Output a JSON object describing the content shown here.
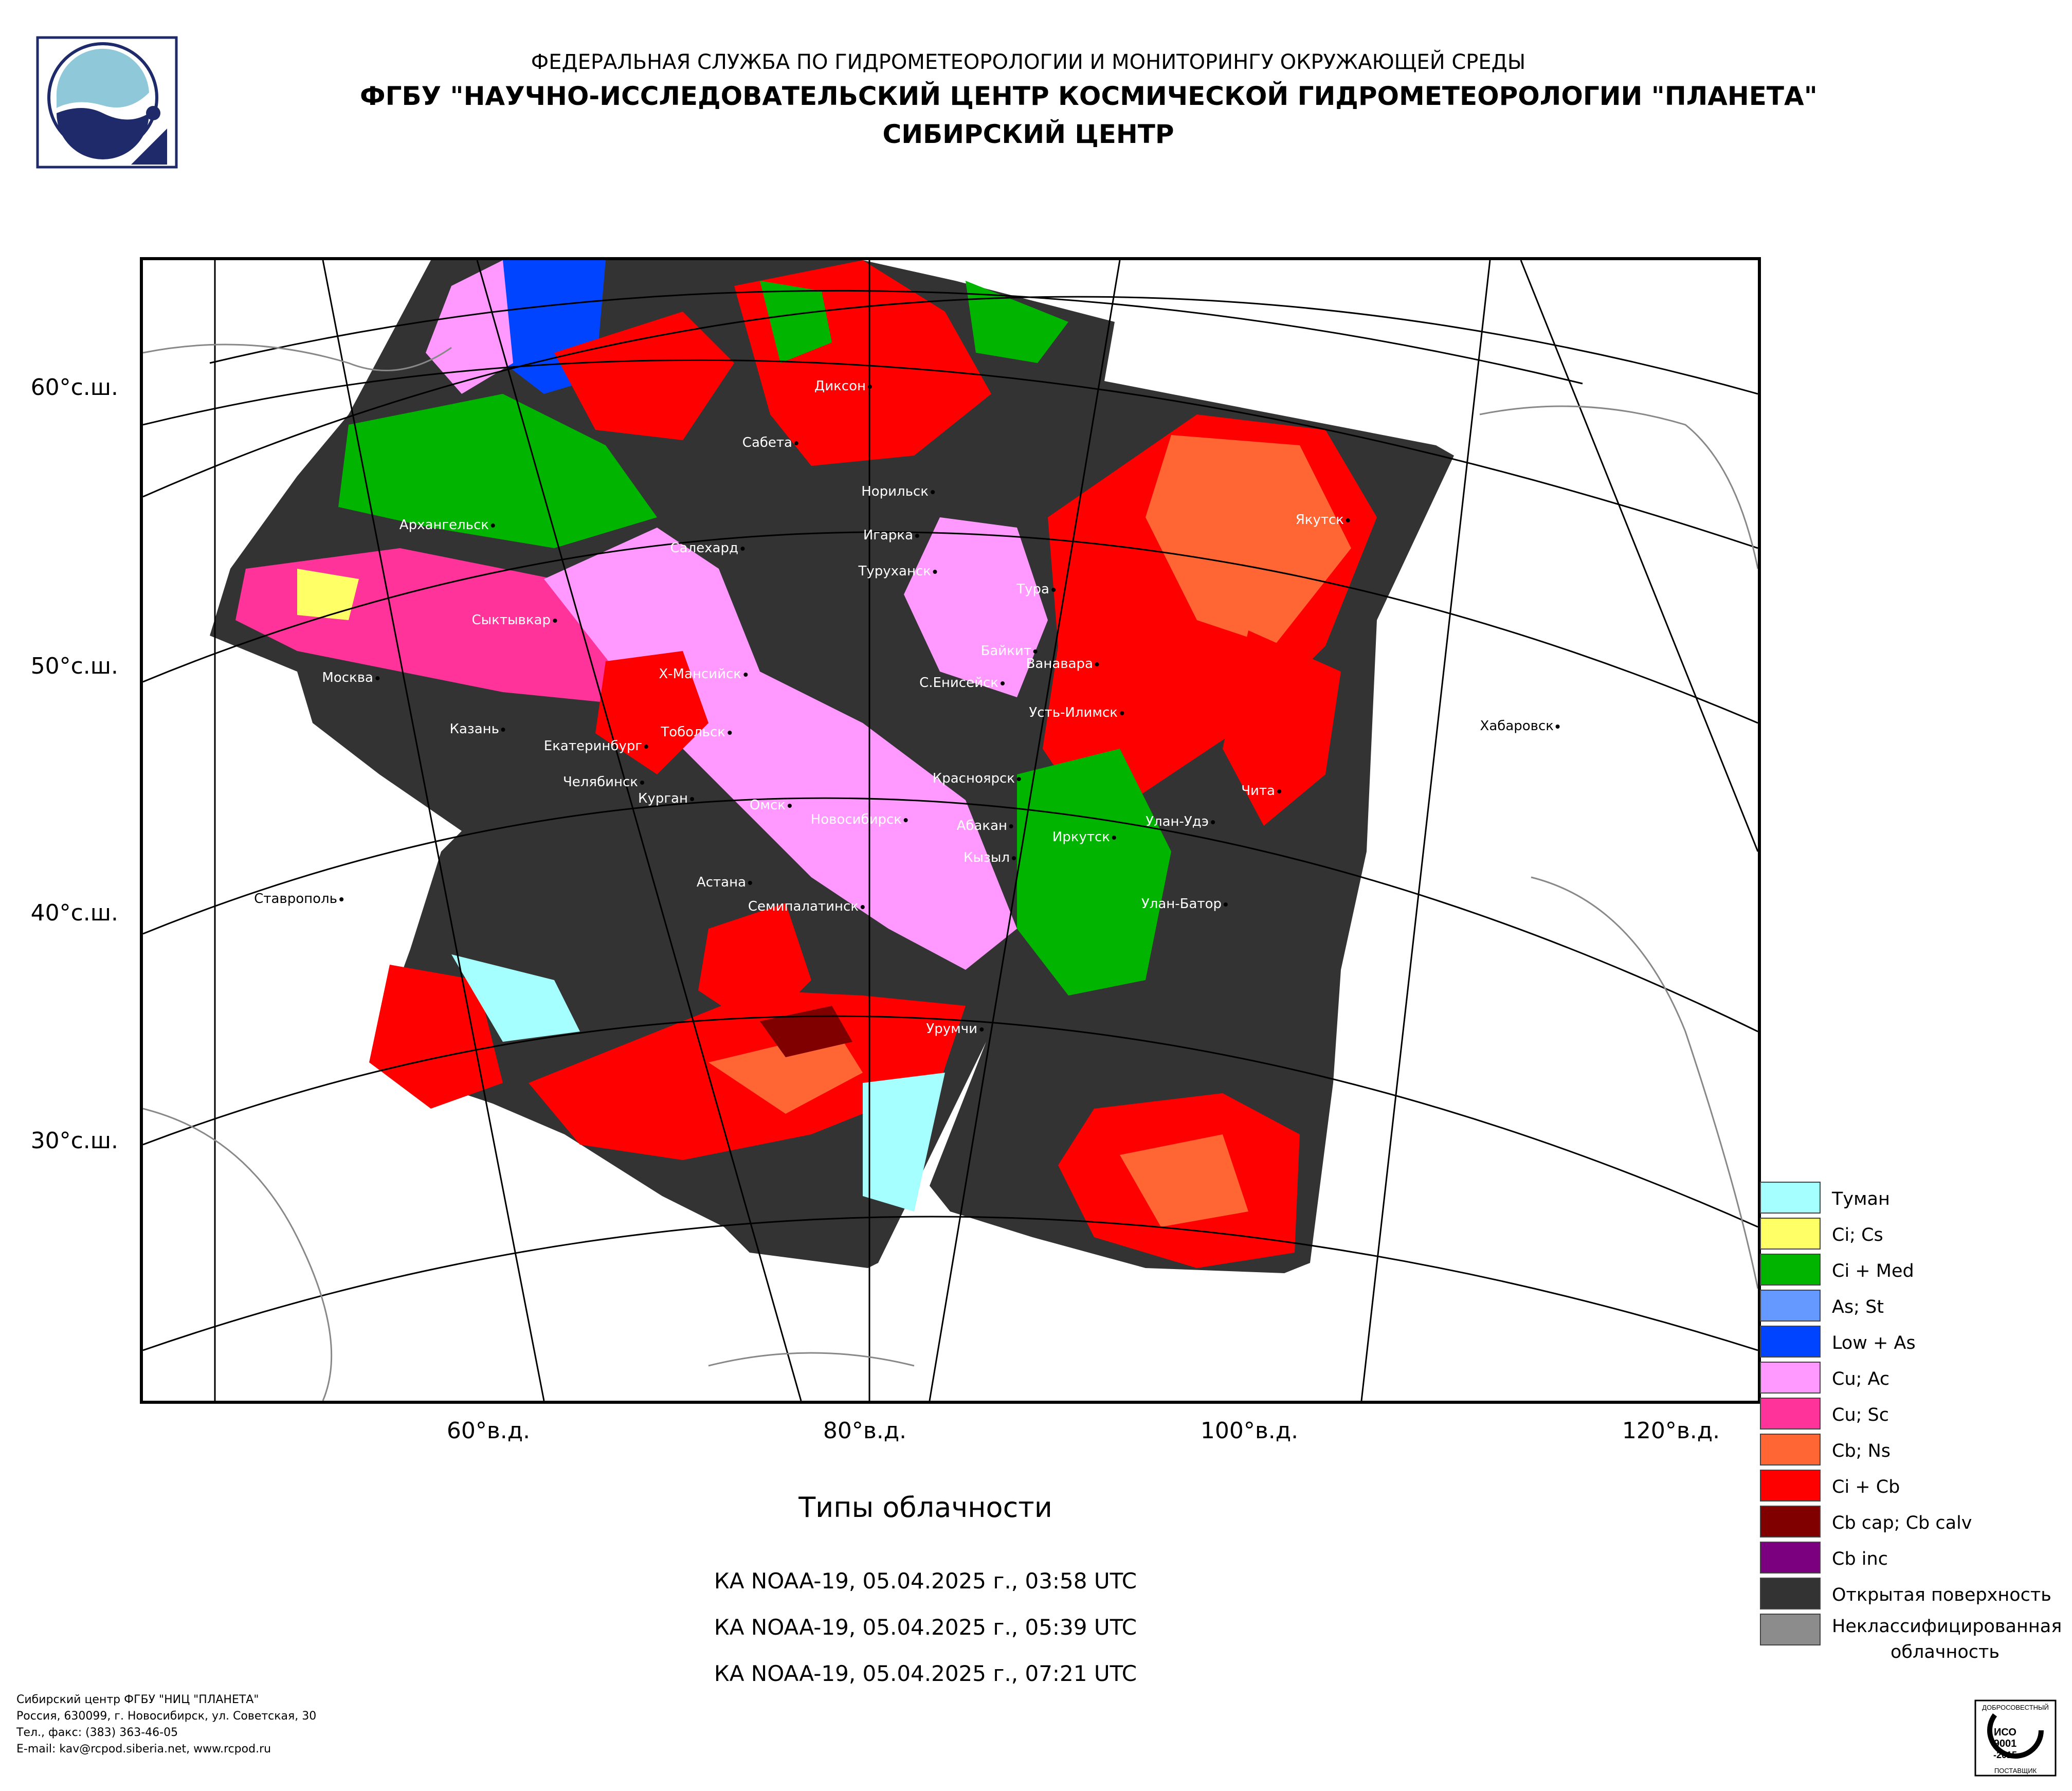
{
  "header": {
    "line1": "ФЕДЕРАЛЬНАЯ СЛУЖБА ПО ГИДРОМЕТЕОРОЛОГИИ И МОНИТОРИНГУ ОКРУЖАЮЩЕЙ СРЕДЫ",
    "line2": "ФГБУ \"НАУЧНО-ИССЛЕДОВАТЕЛЬСКИЙ ЦЕНТР КОСМИЧЕСКОЙ ГИДРОМЕТЕОРОЛОГИИ \"ПЛАНЕТА\"",
    "line3": "СИБИРСКИЙ ЦЕНТР"
  },
  "logo": {
    "icon": "planeta-logo-icon"
  },
  "map": {
    "latitude_labels": [
      "60°с.ш.",
      "50°с.ш.",
      "40°с.ш.",
      "30°с.ш."
    ],
    "longitude_labels": [
      "60°в.д.",
      "80°в.д.",
      "100°в.д.",
      "120°в.д."
    ],
    "cities": [
      "Диксон",
      "Сабета",
      "Норильск",
      "Архангельск",
      "Салехард",
      "Игарка",
      "Туруханск",
      "Якутск",
      "Тура",
      "Сыктывкар",
      "Байкит",
      "Ванавара",
      "Москва",
      "Х-Мансийск",
      "С.Енисейск",
      "Усть-Илимск",
      "Хабаровск",
      "Казань",
      "Тобольск",
      "Екатеринбург",
      "Челябинск",
      "Красноярск",
      "Чита",
      "Курган",
      "Омск",
      "Новосибирск",
      "Абакан",
      "Улан-Удэ",
      "Иркутск",
      "Кызыл",
      "Астана",
      "Ставрополь",
      "Семипалатинск",
      "Улан-Батор",
      "Урумчи"
    ]
  },
  "legend": [
    {
      "label": "Туман",
      "color": "#a6ffff"
    },
    {
      "label": "Ci; Cs",
      "color": "#ffff66"
    },
    {
      "label": "Ci + Med",
      "color": "#00b400"
    },
    {
      "label": "As; St",
      "color": "#6699ff"
    },
    {
      "label": "Low + As",
      "color": "#0044ff"
    },
    {
      "label": "Cu; Ac",
      "color": "#ff99ff"
    },
    {
      "label": "Cu; Sc",
      "color": "#ff3399"
    },
    {
      "label": "Cb; Ns",
      "color": "#ff6633"
    },
    {
      "label": "Ci + Cb",
      "color": "#ff0000"
    },
    {
      "label": "Cb cap; Cb calv",
      "color": "#800000"
    },
    {
      "label": "Cb inc",
      "color": "#7a0080"
    },
    {
      "label": "Открытая поверхность",
      "color": "#333333"
    },
    {
      "label": "Неклассифицированная облачность",
      "color": "#8c8c8c"
    }
  ],
  "subtitle": "Типы облачности",
  "passes": [
    "КА NOAA-19, 05.04.2025 г., 03:58 UTC",
    "КА NOAA-19, 05.04.2025 г., 05:39 UTC",
    "КА NOAA-19, 05.04.2025 г., 07:21 UTC"
  ],
  "footer": [
    "Сибирский центр ФГБУ \"НИЦ \"ПЛАНЕТА\"",
    "Россия, 630099, г. Новосибирск, ул. Советская, 30",
    "Тел., факс: (383) 363-46-05",
    "E-mail: kav@rcpod.siberia.net, www.rcpod.ru"
  ],
  "certificate": {
    "icon": "iso-certificate-icon",
    "top_text": "ДОБРОСОВЕСТНЫЙ",
    "standard": "ИСО",
    "number": "9001",
    "year": "-2015",
    "bottom_text": "ПОСТАВЩИК"
  }
}
